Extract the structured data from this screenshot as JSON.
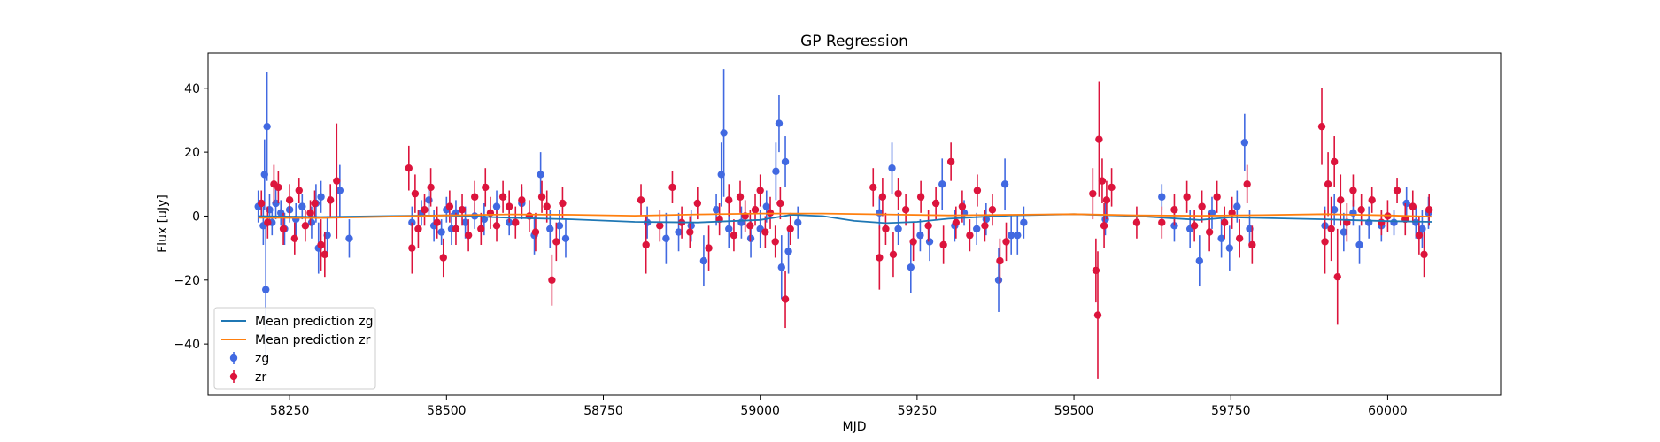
{
  "chart_data": {
    "type": "scatter",
    "title": "GP Regression",
    "xlabel": "MJD",
    "ylabel": "Flux [uJy]",
    "xlim": [
      58120,
      60180
    ],
    "ylim": [
      -56,
      51
    ],
    "xticks": [
      58250,
      58500,
      58750,
      59000,
      59250,
      59500,
      59750,
      60000
    ],
    "yticks": [
      -40,
      -20,
      0,
      20,
      40
    ],
    "legend_position": "lower-left",
    "colors": {
      "zg": "#4169e1",
      "zr": "#dc143c",
      "mean_zg": "#1f77b4",
      "mean_zr": "#ff7f0e"
    },
    "lines": [
      {
        "name": "Mean prediction zg",
        "color": "#1f77b4",
        "x": [
          58200,
          58300,
          58400,
          58500,
          58600,
          58700,
          58800,
          58900,
          59000,
          59050,
          59100,
          59150,
          59200,
          59250,
          59300,
          59400,
          59500,
          59600,
          59700,
          59750,
          59800,
          59900,
          60000,
          60070
        ],
        "y": [
          0,
          -0.3,
          0,
          0.2,
          -0.5,
          -1,
          -1.8,
          -2,
          -1.2,
          0.4,
          0,
          -1.5,
          -2.2,
          -1.8,
          -0.8,
          0.2,
          0.6,
          0,
          -1.2,
          -0.4,
          -0.6,
          -1,
          -1.6,
          -1.8
        ]
      },
      {
        "name": "Mean prediction zr",
        "color": "#ff7f0e",
        "x": [
          58200,
          58300,
          58400,
          58500,
          58600,
          58700,
          58800,
          58900,
          59000,
          59100,
          59200,
          59300,
          59400,
          59500,
          59600,
          59700,
          59800,
          59900,
          60000,
          60070
        ],
        "y": [
          -0.5,
          -0.6,
          -0.2,
          0.2,
          0.5,
          0.4,
          0.1,
          0.5,
          0.8,
          0.8,
          0.5,
          0.2,
          0.4,
          0.6,
          0.2,
          0.1,
          0.3,
          0.6,
          0.2,
          -0.2
        ]
      }
    ],
    "series": [
      {
        "name": "zg",
        "color": "#4169e1",
        "points": [
          [
            58200,
            3,
            5
          ],
          [
            58208,
            -3,
            6
          ],
          [
            58210,
            13,
            11
          ],
          [
            58212,
            -23,
            22
          ],
          [
            58214,
            28,
            17
          ],
          [
            58218,
            2,
            5
          ],
          [
            58222,
            -2,
            4
          ],
          [
            58228,
            4,
            5
          ],
          [
            58236,
            1,
            4
          ],
          [
            58242,
            -4,
            5
          ],
          [
            58250,
            2,
            4
          ],
          [
            58260,
            -1,
            5
          ],
          [
            58270,
            3,
            4
          ],
          [
            58285,
            -2,
            5
          ],
          [
            58292,
            4,
            6
          ],
          [
            58296,
            -10,
            8
          ],
          [
            58300,
            6,
            5
          ],
          [
            58310,
            -6,
            6
          ],
          [
            58330,
            8,
            8
          ],
          [
            58345,
            -7,
            6
          ],
          [
            58445,
            -2,
            5
          ],
          [
            58460,
            1,
            4
          ],
          [
            58472,
            5,
            5
          ],
          [
            58480,
            -3,
            5
          ],
          [
            58492,
            -5,
            4
          ],
          [
            58500,
            2,
            4
          ],
          [
            58508,
            -4,
            5
          ],
          [
            58515,
            1,
            4
          ],
          [
            58530,
            -2,
            5
          ],
          [
            58545,
            0,
            4
          ],
          [
            58560,
            -1,
            5
          ],
          [
            58580,
            3,
            5
          ],
          [
            58600,
            -2,
            4
          ],
          [
            58620,
            4,
            5
          ],
          [
            58640,
            -6,
            6
          ],
          [
            58650,
            13,
            7
          ],
          [
            58665,
            -4,
            6
          ],
          [
            58680,
            -3,
            5
          ],
          [
            58690,
            -7,
            6
          ],
          [
            58820,
            -2,
            5
          ],
          [
            58850,
            -7,
            8
          ],
          [
            58870,
            -5,
            6
          ],
          [
            58890,
            -3,
            5
          ],
          [
            58910,
            -14,
            8
          ],
          [
            58930,
            2,
            5
          ],
          [
            58938,
            13,
            10
          ],
          [
            58942,
            26,
            20
          ],
          [
            58950,
            -4,
            6
          ],
          [
            58970,
            -2,
            5
          ],
          [
            58985,
            -7,
            6
          ],
          [
            59000,
            -4,
            6
          ],
          [
            59010,
            3,
            5
          ],
          [
            59025,
            14,
            9
          ],
          [
            59030,
            29,
            9
          ],
          [
            59034,
            -16,
            10
          ],
          [
            59040,
            17,
            8
          ],
          [
            59045,
            -11,
            7
          ],
          [
            59060,
            -2,
            5
          ],
          [
            59190,
            1,
            5
          ],
          [
            59210,
            15,
            8
          ],
          [
            59220,
            -4,
            5
          ],
          [
            59240,
            -16,
            8
          ],
          [
            59255,
            -6,
            5
          ],
          [
            59270,
            -8,
            6
          ],
          [
            59290,
            10,
            8
          ],
          [
            59310,
            -3,
            5
          ],
          [
            59325,
            1,
            4
          ],
          [
            59345,
            -4,
            5
          ],
          [
            59360,
            -1,
            5
          ],
          [
            59380,
            -20,
            10
          ],
          [
            59390,
            10,
            8
          ],
          [
            59400,
            -6,
            6
          ],
          [
            59410,
            -6,
            6
          ],
          [
            59420,
            -2,
            5
          ],
          [
            59550,
            -1,
            5
          ],
          [
            59640,
            6,
            4
          ],
          [
            59660,
            -3,
            5
          ],
          [
            59685,
            -4,
            6
          ],
          [
            59700,
            -14,
            8
          ],
          [
            59720,
            1,
            5
          ],
          [
            59735,
            -7,
            6
          ],
          [
            59748,
            -10,
            7
          ],
          [
            59760,
            3,
            5
          ],
          [
            59772,
            23,
            9
          ],
          [
            59780,
            -4,
            6
          ],
          [
            59900,
            -3,
            6
          ],
          [
            59915,
            2,
            5
          ],
          [
            59930,
            -5,
            6
          ],
          [
            59945,
            1,
            4
          ],
          [
            59955,
            -9,
            6
          ],
          [
            59970,
            -2,
            5
          ],
          [
            59990,
            -3,
            5
          ],
          [
            60010,
            -2,
            4
          ],
          [
            60030,
            4,
            5
          ],
          [
            60045,
            -2,
            5
          ],
          [
            60055,
            -4,
            6
          ],
          [
            60065,
            1,
            5
          ]
        ]
      },
      {
        "name": "zr",
        "color": "#dc143c",
        "points": [
          [
            58205,
            4,
            4
          ],
          [
            58215,
            -2,
            5
          ],
          [
            58225,
            10,
            6
          ],
          [
            58232,
            9,
            5
          ],
          [
            58240,
            -4,
            5
          ],
          [
            58250,
            5,
            5
          ],
          [
            58258,
            -7,
            5
          ],
          [
            58265,
            8,
            4
          ],
          [
            58275,
            -3,
            5
          ],
          [
            58283,
            1,
            4
          ],
          [
            58290,
            4,
            4
          ],
          [
            58300,
            -9,
            8
          ],
          [
            58306,
            -12,
            7
          ],
          [
            58315,
            5,
            5
          ],
          [
            58325,
            11,
            18
          ],
          [
            58440,
            15,
            7
          ],
          [
            58445,
            -10,
            8
          ],
          [
            58450,
            7,
            6
          ],
          [
            58455,
            -4,
            6
          ],
          [
            58465,
            2,
            5
          ],
          [
            58475,
            9,
            6
          ],
          [
            58485,
            -2,
            5
          ],
          [
            58495,
            -13,
            6
          ],
          [
            58505,
            3,
            5
          ],
          [
            58515,
            -4,
            5
          ],
          [
            58525,
            2,
            5
          ],
          [
            58535,
            -6,
            5
          ],
          [
            58545,
            6,
            5
          ],
          [
            58555,
            -4,
            5
          ],
          [
            58562,
            9,
            6
          ],
          [
            58570,
            1,
            5
          ],
          [
            58580,
            -3,
            5
          ],
          [
            58590,
            6,
            5
          ],
          [
            58600,
            3,
            5
          ],
          [
            58610,
            -2,
            5
          ],
          [
            58620,
            5,
            5
          ],
          [
            58632,
            0,
            5
          ],
          [
            58642,
            -5,
            6
          ],
          [
            58652,
            6,
            5
          ],
          [
            58660,
            3,
            5
          ],
          [
            58668,
            -20,
            8
          ],
          [
            58675,
            -8,
            6
          ],
          [
            58685,
            4,
            5
          ],
          [
            58810,
            5,
            5
          ],
          [
            58818,
            -9,
            9
          ],
          [
            58840,
            -3,
            5
          ],
          [
            58860,
            9,
            5
          ],
          [
            58875,
            -2,
            5
          ],
          [
            58888,
            -5,
            5
          ],
          [
            58900,
            4,
            5
          ],
          [
            58918,
            -10,
            7
          ],
          [
            58935,
            -1,
            5
          ],
          [
            58950,
            5,
            5
          ],
          [
            58958,
            -6,
            5
          ],
          [
            58968,
            6,
            5
          ],
          [
            58976,
            0,
            5
          ],
          [
            58984,
            -3,
            5
          ],
          [
            58992,
            2,
            5
          ],
          [
            59000,
            8,
            5
          ],
          [
            59008,
            -5,
            5
          ],
          [
            59016,
            1,
            5
          ],
          [
            59024,
            -8,
            5
          ],
          [
            59032,
            4,
            5
          ],
          [
            59040,
            -26,
            9
          ],
          [
            59048,
            -4,
            5
          ],
          [
            59180,
            9,
            6
          ],
          [
            59190,
            -13,
            10
          ],
          [
            59195,
            6,
            6
          ],
          [
            59200,
            -4,
            5
          ],
          [
            59212,
            -12,
            7
          ],
          [
            59220,
            7,
            5
          ],
          [
            59232,
            2,
            5
          ],
          [
            59244,
            -8,
            6
          ],
          [
            59256,
            6,
            5
          ],
          [
            59268,
            -3,
            5
          ],
          [
            59280,
            4,
            5
          ],
          [
            59292,
            -9,
            6
          ],
          [
            59304,
            17,
            6
          ],
          [
            59312,
            -2,
            5
          ],
          [
            59322,
            3,
            5
          ],
          [
            59334,
            -6,
            5
          ],
          [
            59346,
            8,
            5
          ],
          [
            59358,
            -3,
            5
          ],
          [
            59370,
            2,
            5
          ],
          [
            59382,
            -14,
            7
          ],
          [
            59392,
            -8,
            6
          ],
          [
            59530,
            7,
            8
          ],
          [
            59535,
            -17,
            10
          ],
          [
            59538,
            -31,
            20
          ],
          [
            59540,
            24,
            18
          ],
          [
            59545,
            11,
            7
          ],
          [
            59548,
            -3,
            7
          ],
          [
            59552,
            5,
            6
          ],
          [
            59560,
            9,
            6
          ],
          [
            59600,
            -2,
            5
          ],
          [
            59640,
            -2,
            5
          ],
          [
            59660,
            2,
            5
          ],
          [
            59680,
            6,
            5
          ],
          [
            59692,
            -3,
            5
          ],
          [
            59704,
            3,
            5
          ],
          [
            59716,
            -5,
            6
          ],
          [
            59728,
            6,
            5
          ],
          [
            59740,
            -2,
            5
          ],
          [
            59752,
            1,
            5
          ],
          [
            59764,
            -7,
            6
          ],
          [
            59776,
            10,
            6
          ],
          [
            59784,
            -9,
            6
          ],
          [
            59895,
            28,
            12
          ],
          [
            59900,
            -8,
            10
          ],
          [
            59905,
            10,
            10
          ],
          [
            59910,
            -4,
            10
          ],
          [
            59915,
            17,
            8
          ],
          [
            59920,
            -19,
            15
          ],
          [
            59925,
            5,
            8
          ],
          [
            59935,
            -2,
            6
          ],
          [
            59945,
            8,
            5
          ],
          [
            59958,
            2,
            5
          ],
          [
            59975,
            5,
            4
          ],
          [
            59990,
            -2,
            4
          ],
          [
            60000,
            0,
            5
          ],
          [
            60015,
            8,
            4
          ],
          [
            60028,
            -1,
            5
          ],
          [
            60040,
            3,
            5
          ],
          [
            60050,
            -6,
            6
          ],
          [
            60058,
            -12,
            7
          ],
          [
            60066,
            2,
            5
          ]
        ]
      }
    ]
  }
}
